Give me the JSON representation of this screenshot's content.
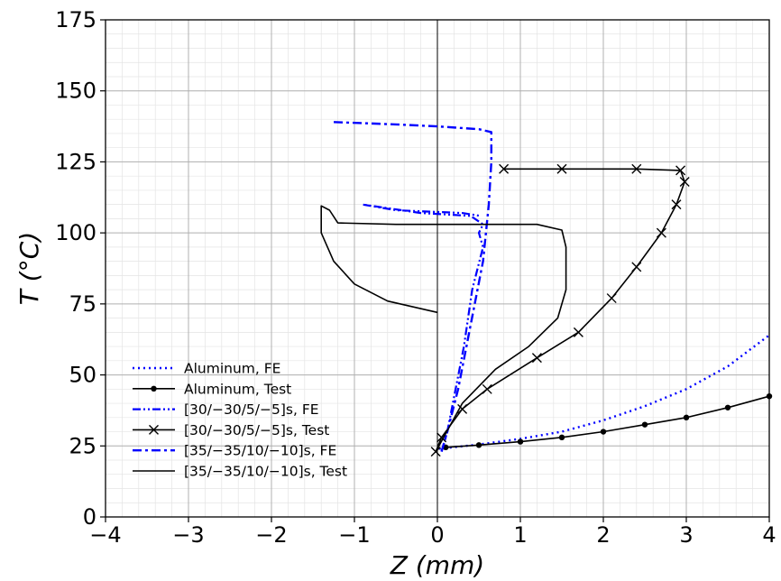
{
  "chart_data": {
    "type": "line",
    "xlabel": "Z (mm)",
    "ylabel": "T (°C)",
    "xlim": [
      -4,
      4
    ],
    "ylim": [
      0,
      175
    ],
    "xticks": [
      "−4",
      "−3",
      "−2",
      "−1",
      "0",
      "1",
      "2",
      "3",
      "4"
    ],
    "yticks": [
      "0",
      "25",
      "50",
      "75",
      "100",
      "125",
      "150",
      "175"
    ],
    "grid": "major and minor",
    "legend_position": "lower-left",
    "series": [
      {
        "name": "Aluminum, FE",
        "style": "dotted",
        "color": "#0000ff",
        "points": [
          [
            0.02,
            24
          ],
          [
            0.5,
            25.5
          ],
          [
            1.0,
            27.5
          ],
          [
            1.5,
            30
          ],
          [
            2.0,
            34
          ],
          [
            2.5,
            39
          ],
          [
            3.0,
            45
          ],
          [
            3.5,
            53
          ],
          [
            4.0,
            64
          ]
        ]
      },
      {
        "name": "Aluminum, Test",
        "style": "solid-dots",
        "color": "#000000",
        "points": [
          [
            0.1,
            24.5
          ],
          [
            0.5,
            25.3
          ],
          [
            1.0,
            26.5
          ],
          [
            1.5,
            28
          ],
          [
            2.0,
            30
          ],
          [
            2.5,
            32.5
          ],
          [
            3.0,
            35
          ],
          [
            3.5,
            38.5
          ],
          [
            4.0,
            42.5
          ]
        ]
      },
      {
        "name": "[30/−30/5/−5]s, FE",
        "style": "dash-dot-dot",
        "color": "#0000ff",
        "points": [
          [
            0.05,
            23
          ],
          [
            0.12,
            30
          ],
          [
            0.22,
            45
          ],
          [
            0.32,
            60
          ],
          [
            0.42,
            80
          ],
          [
            0.55,
            95
          ],
          [
            0.5,
            100
          ],
          [
            0.55,
            103
          ],
          [
            0.4,
            106
          ],
          [
            -0.2,
            107
          ],
          [
            -0.9,
            110
          ],
          [
            -0.5,
            108
          ],
          [
            0.3,
            107
          ],
          [
            0.52,
            106
          ]
        ]
      },
      {
        "name": "[30/−30/5/−5]s, Test",
        "style": "solid-x",
        "color": "#000000",
        "points": [
          [
            -0.02,
            23
          ],
          [
            0.05,
            28
          ],
          [
            0.3,
            38
          ],
          [
            0.6,
            45
          ],
          [
            1.2,
            56
          ],
          [
            1.7,
            65
          ],
          [
            2.1,
            77
          ],
          [
            2.4,
            88
          ],
          [
            2.7,
            100
          ],
          [
            2.88,
            110
          ],
          [
            2.98,
            118
          ],
          [
            2.93,
            122
          ],
          [
            2.4,
            122.5
          ],
          [
            1.5,
            122.5
          ],
          [
            0.8,
            122.5
          ]
        ]
      },
      {
        "name": "[35/−35/10/−10]s, FE",
        "style": "dash-dot",
        "color": "#0000ff",
        "points": [
          [
            0.05,
            23
          ],
          [
            0.12,
            30
          ],
          [
            0.25,
            45
          ],
          [
            0.35,
            60
          ],
          [
            0.45,
            75
          ],
          [
            0.55,
            90
          ],
          [
            0.62,
            110
          ],
          [
            0.65,
            125
          ],
          [
            0.65,
            135.5
          ],
          [
            0.5,
            136.5
          ],
          [
            0.0,
            137.5
          ],
          [
            -0.5,
            138.2
          ],
          [
            -1.25,
            139
          ]
        ]
      },
      {
        "name": "[35/−35/10/−10]s, Test",
        "style": "solid",
        "color": "#000000",
        "points": [
          [
            0.0,
            24
          ],
          [
            0.3,
            40
          ],
          [
            0.7,
            52
          ],
          [
            1.1,
            60
          ],
          [
            1.45,
            70
          ],
          [
            1.55,
            80
          ],
          [
            1.55,
            95
          ],
          [
            1.5,
            101
          ],
          [
            1.2,
            103
          ],
          [
            0.5,
            103
          ],
          [
            -0.5,
            103
          ],
          [
            -1.2,
            103.5
          ],
          [
            -1.3,
            108
          ],
          [
            -1.4,
            109.5
          ],
          [
            -1.4,
            100
          ],
          [
            -1.25,
            90
          ],
          [
            -1.0,
            82
          ],
          [
            -0.6,
            76
          ],
          [
            0.0,
            72
          ]
        ]
      }
    ]
  }
}
